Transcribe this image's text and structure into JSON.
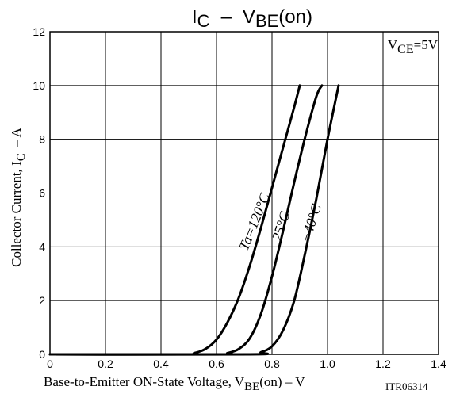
{
  "chart_data": {
    "type": "line",
    "title_main": "I",
    "title_main_sub": "C",
    "title_dash": "–",
    "title_v": "V",
    "title_v_sub": "BE",
    "title_suffix": "(on)",
    "condition_main": "V",
    "condition_sub": "CE",
    "condition_value": "=5V",
    "ylabel_main": "Collector Current, I",
    "ylabel_sub": "C",
    "ylabel_unit": "–  A",
    "xlabel_main": "Base-to-Emitter ON-State Voltage, V",
    "xlabel_sub": "BE",
    "xlabel_suffix": "(on)  –  V",
    "code": "ITR06314",
    "xlim": [
      0,
      1.4
    ],
    "ylim": [
      0,
      12
    ],
    "x_ticks": [
      "0",
      "0.2",
      "0.4",
      "0.6",
      "0.8",
      "1.0",
      "1.2",
      "1.4"
    ],
    "y_ticks": [
      "0",
      "2",
      "4",
      "6",
      "8",
      "10",
      "12"
    ],
    "grid": true,
    "series": [
      {
        "name": "Ta=120°C",
        "x": [
          0.0,
          0.48,
          0.52,
          0.56,
          0.6,
          0.64,
          0.68,
          0.72,
          0.76,
          0.8,
          0.84,
          0.88,
          0.9
        ],
        "y": [
          0.0,
          0.0,
          0.05,
          0.2,
          0.55,
          1.2,
          2.1,
          3.3,
          4.7,
          6.2,
          7.7,
          9.2,
          10.0
        ]
      },
      {
        "name": "25°C",
        "x": [
          0.0,
          0.6,
          0.64,
          0.68,
          0.72,
          0.76,
          0.8,
          0.84,
          0.88,
          0.92,
          0.96,
          0.98
        ],
        "y": [
          0.0,
          0.0,
          0.05,
          0.2,
          0.6,
          1.5,
          2.9,
          4.6,
          6.4,
          8.1,
          9.6,
          10.0
        ]
      },
      {
        "name": "−40°C",
        "x": [
          0.0,
          0.72,
          0.76,
          0.8,
          0.84,
          0.88,
          0.92,
          0.96,
          1.0,
          1.04
        ],
        "y": [
          0.0,
          0.0,
          0.08,
          0.3,
          0.9,
          2.0,
          3.8,
          5.8,
          8.0,
          10.0
        ]
      }
    ]
  }
}
